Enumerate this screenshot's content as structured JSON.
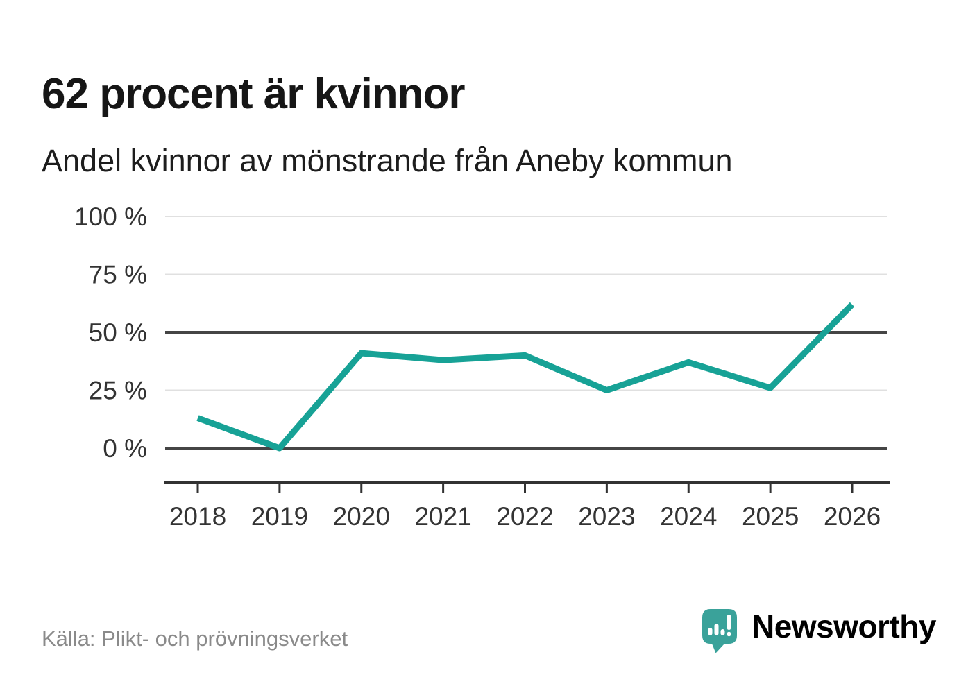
{
  "header": {
    "title": "62 procent är kvinnor",
    "subtitle": "Andel kvinnor av mönstrande från Aneby kommun"
  },
  "chart_data": {
    "type": "line",
    "title": "62 procent är kvinnor",
    "subtitle": "Andel kvinnor av mönstrande från Aneby kommun",
    "categories": [
      "2018",
      "2019",
      "2020",
      "2021",
      "2022",
      "2023",
      "2024",
      "2025",
      "2026"
    ],
    "values": [
      13,
      0,
      41,
      38,
      40,
      25,
      37,
      26,
      62
    ],
    "unit": "%",
    "xlabel": "",
    "ylabel": "",
    "ylim": [
      0,
      100
    ],
    "yticks": [
      100,
      75,
      50,
      25,
      0
    ],
    "ytick_labels": [
      "100 %",
      "75 %",
      "50 %",
      "25 %",
      "0 %"
    ],
    "emphasized_gridlines": [
      50,
      0
    ],
    "grid": "horizontal",
    "legend": "none",
    "line_color": "#17a296"
  },
  "footer": {
    "source": "Källa: Plikt- och prövningsverket",
    "brand": "Newsworthy",
    "logo_icon": "newsworthy-speech-bubble-bar-chart-icon"
  },
  "colors": {
    "accent": "#17a296",
    "brand_teal": "#3aa29a",
    "grid_light": "#e0e0e0",
    "grid_dark": "#454545",
    "axis_dark": "#323232",
    "label_text": "#333333",
    "title_text": "#161616",
    "muted_text": "#8a8a8a"
  }
}
